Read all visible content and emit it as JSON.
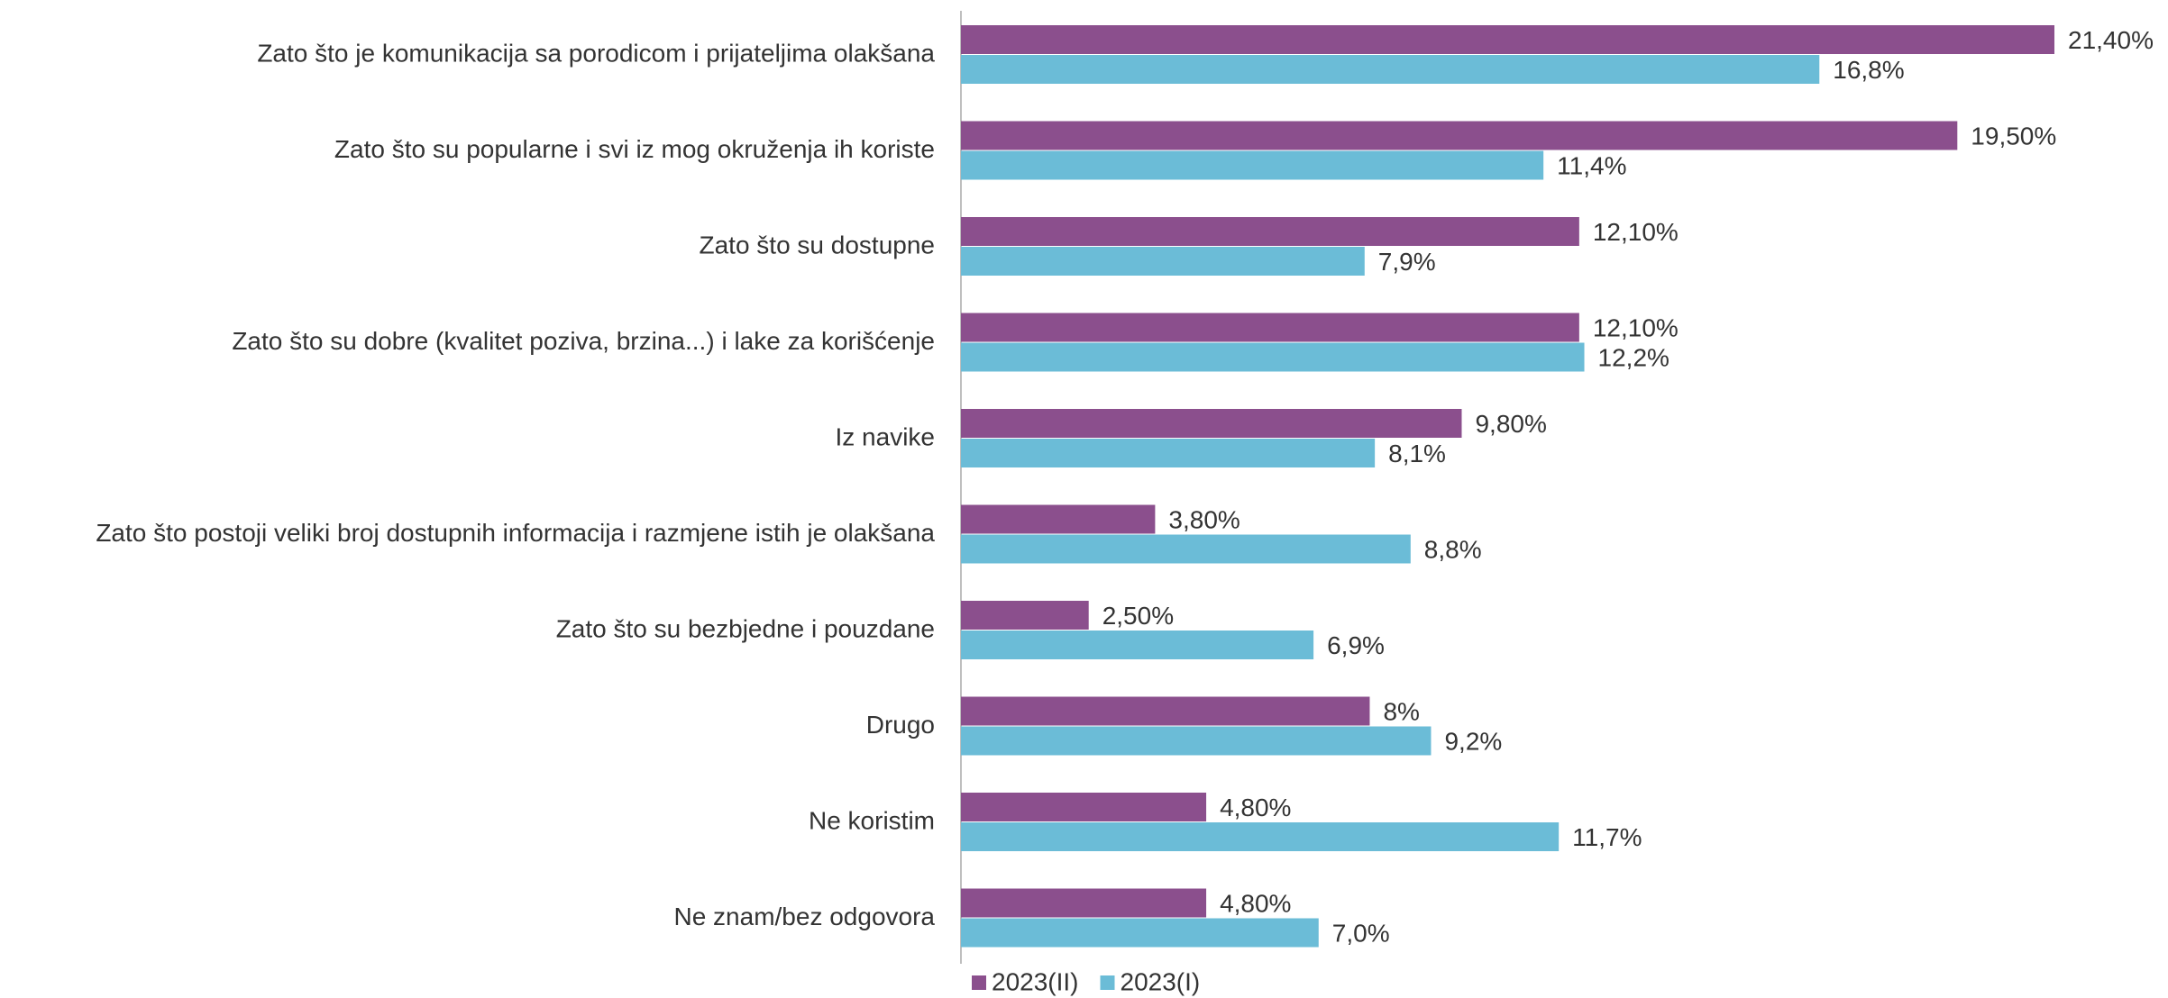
{
  "chart_data": {
    "type": "hbar",
    "categories": [
      "Zato što je komunikacija sa porodicom i prijateljima olakšana",
      "Zato što su popularne i svi iz mog okruženja ih koriste",
      "Zato što su dostupne",
      "Zato što su dobre (kvalitet poziva, brzina...) i lake za korišćenje",
      "Iz navike",
      "Zato što postoji veliki broj dostupnih informacija i razmjene istih je olakšana",
      "Zato što su bezbjedne i pouzdane",
      "Drugo",
      "Ne koristim",
      "Ne znam/bez odgovora"
    ],
    "series": [
      {
        "name": "2023(II)",
        "color": "#8b4f8d",
        "values": [
          21.4,
          19.5,
          12.1,
          12.1,
          9.8,
          3.8,
          2.5,
          8,
          4.8,
          4.8
        ],
        "value_labels": [
          "21,40%",
          "19,50%",
          "12,10%",
          "12,10%",
          "9,80%",
          "3,80%",
          "2,50%",
          "8%",
          "4,80%",
          "4,80%"
        ]
      },
      {
        "name": "2023(I)",
        "color": "#6bbcd7",
        "values": [
          16.8,
          11.4,
          7.9,
          12.2,
          8.1,
          8.8,
          6.9,
          9.2,
          11.7,
          7.0
        ],
        "value_labels": [
          "16,8%",
          "11,4%",
          "7,9%",
          "12,2%",
          "8,1%",
          "8,8%",
          "6,9%",
          "9,2%",
          "11,7%",
          "7,0%"
        ]
      }
    ],
    "legend": "bottom-left"
  }
}
